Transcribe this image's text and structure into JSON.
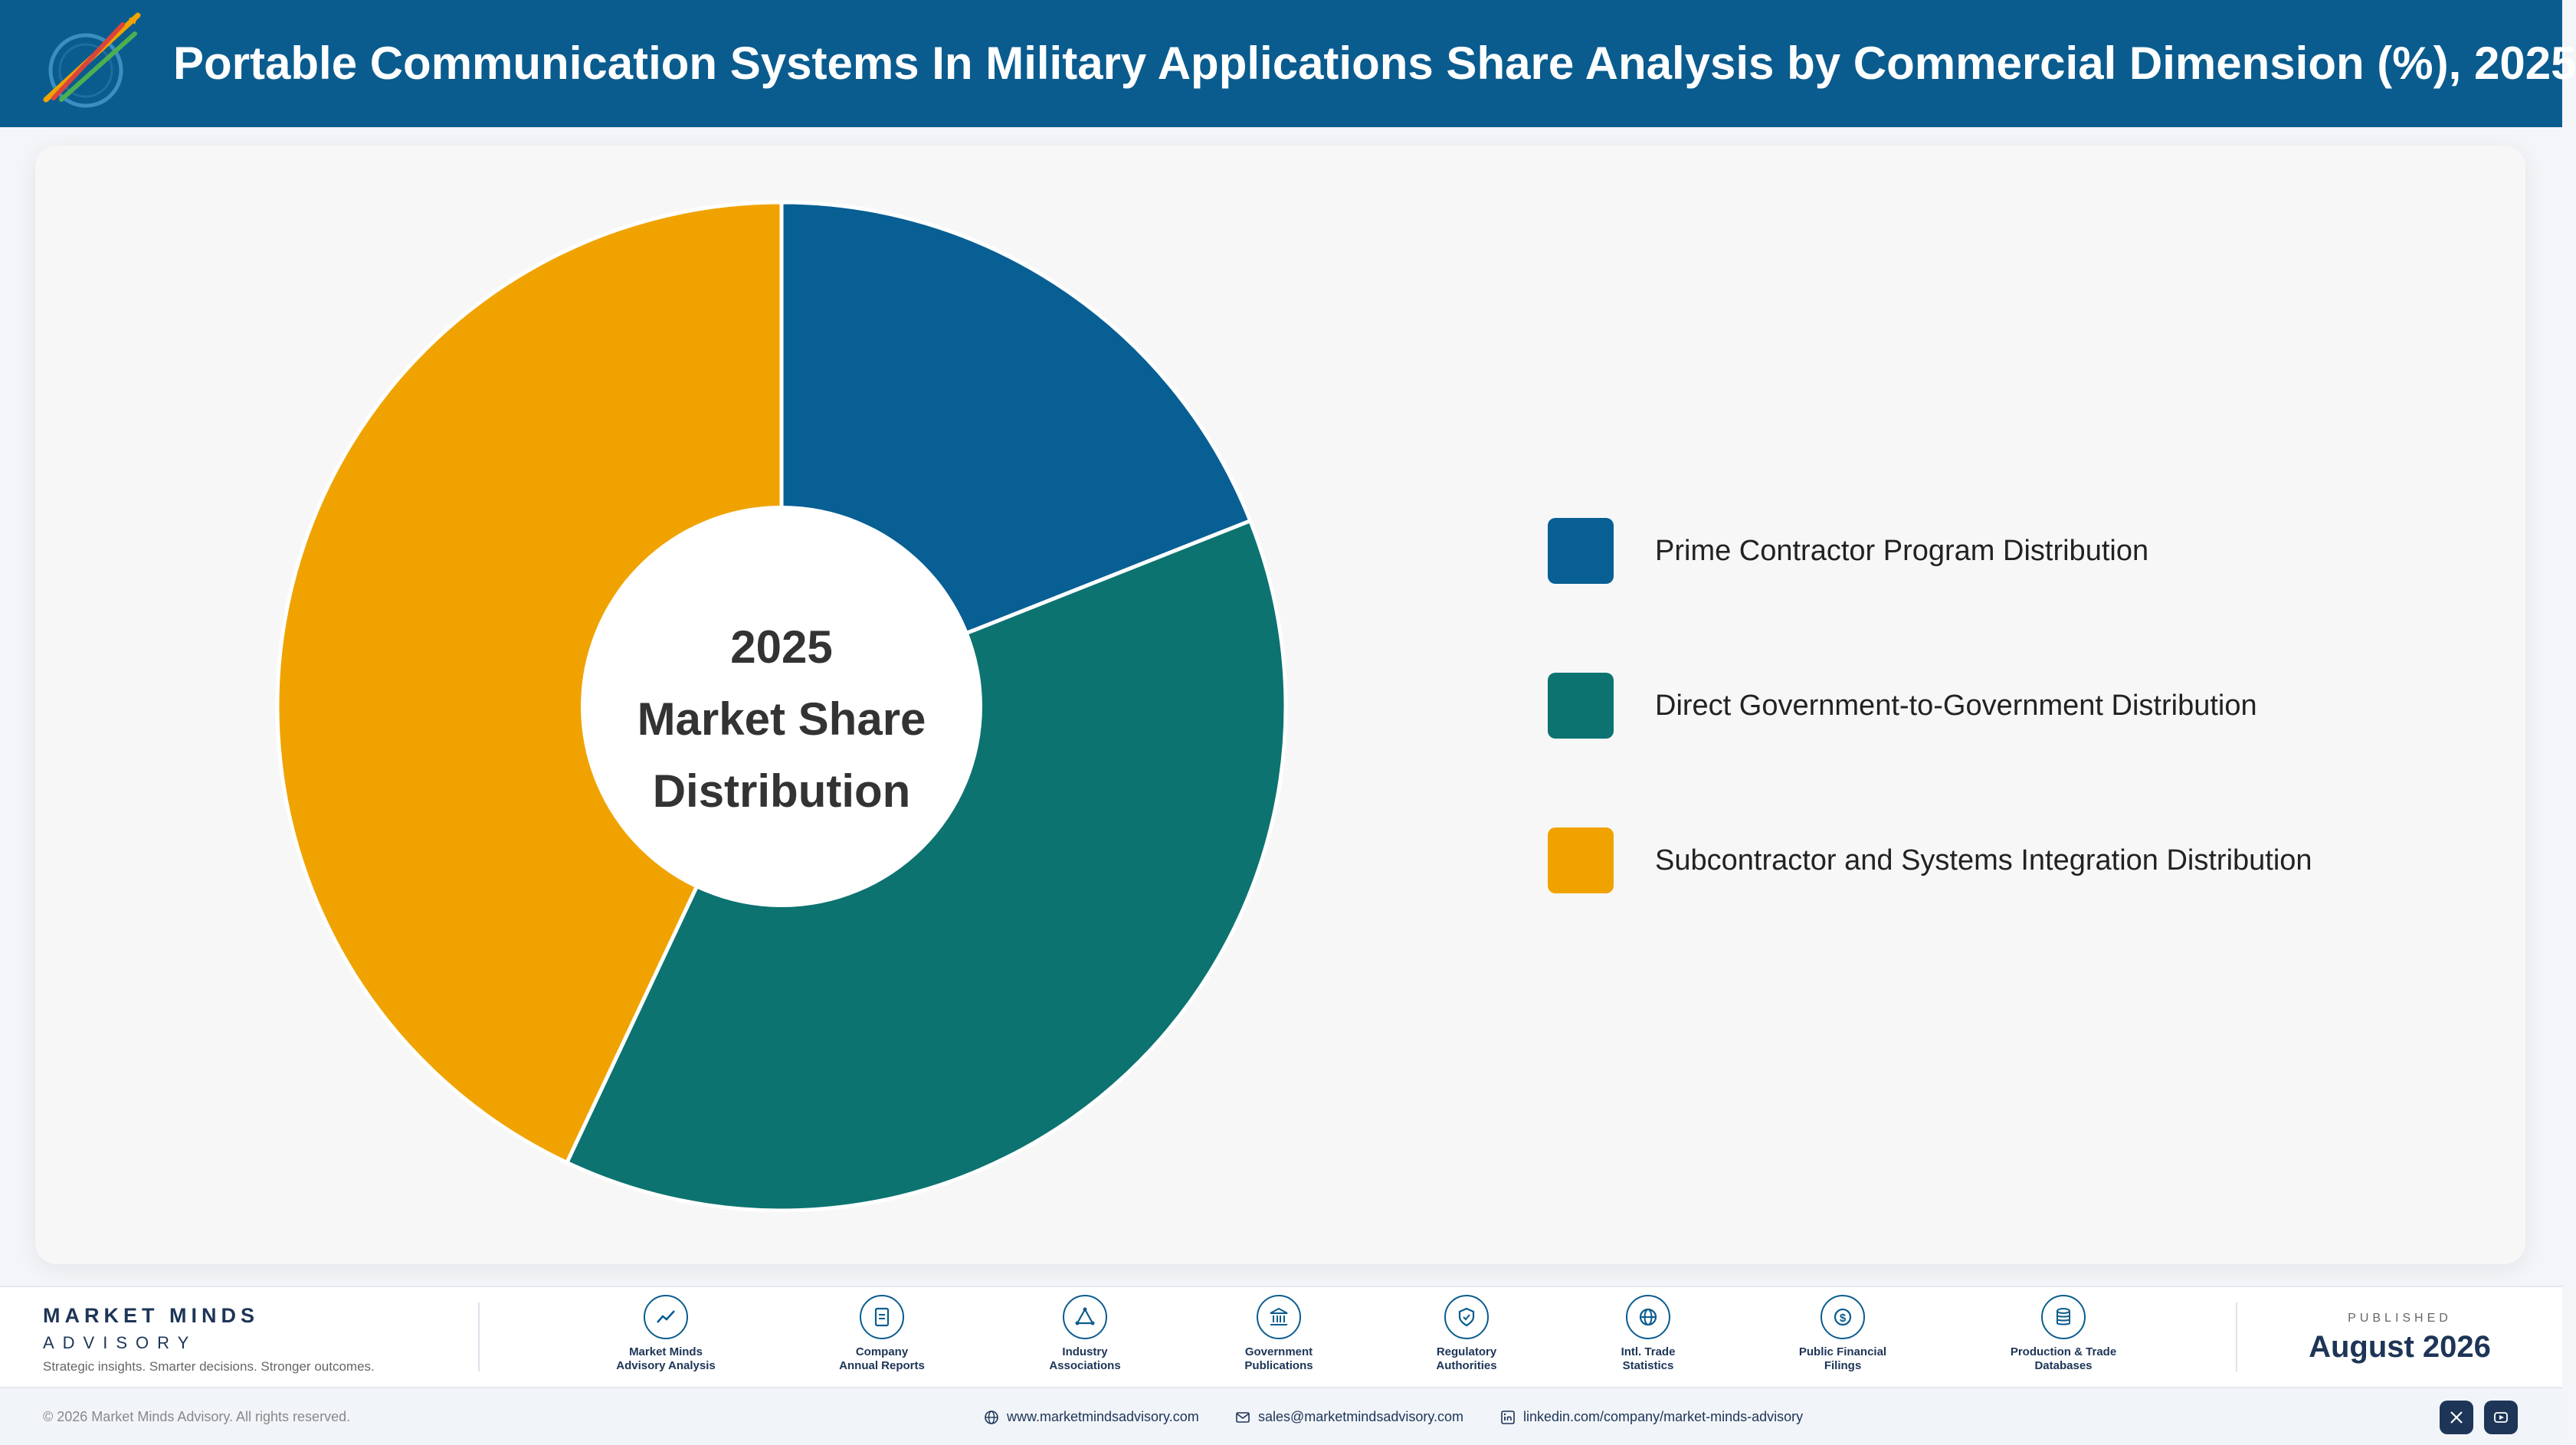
{
  "header": {
    "title": "Portable Communication Systems In Military Applications Share Analysis by Commercial Dimension (%), 2025"
  },
  "chart_data": {
    "type": "pie",
    "center_label": [
      "2025",
      "Market Share",
      "Distribution"
    ],
    "categories": [
      "Prime Contractor Program Distribution",
      "Direct Government-to-Government Distribution",
      "Subcontractor and Systems Integration Distribution"
    ],
    "values": [
      19,
      38,
      43
    ],
    "colors": [
      "#075f94",
      "#0c7370",
      "#f0a300"
    ],
    "legend_position": "right"
  },
  "footer": {
    "brand_name": "MARKET MINDS",
    "brand_sub": "ADVISORY",
    "tagline": "Strategic insights. Smarter decisions. Stronger outcomes.",
    "sources": [
      {
        "line1": "Market Minds",
        "line2": "Advisory Analysis",
        "icon": "trend-icon"
      },
      {
        "line1": "Company",
        "line2": "Annual Reports",
        "icon": "document-icon"
      },
      {
        "line1": "Industry",
        "line2": "Associations",
        "icon": "network-icon"
      },
      {
        "line1": "Government",
        "line2": "Publications",
        "icon": "building-icon"
      },
      {
        "line1": "Regulatory",
        "line2": "Authorities",
        "icon": "shield-icon"
      },
      {
        "line1": "Intl. Trade",
        "line2": "Statistics",
        "icon": "globe-icon"
      },
      {
        "line1": "Public Financial",
        "line2": "Filings",
        "icon": "dollar-icon"
      },
      {
        "line1": "Production & Trade",
        "line2": "Databases",
        "icon": "database-icon"
      }
    ],
    "published_label": "PUBLISHED",
    "published_date": "August 2026",
    "copyright": "© 2026 Market Minds Advisory. All rights reserved.",
    "website": "www.marketmindsadvisory.com",
    "email": "sales@marketmindsadvisory.com",
    "linkedin": "linkedin.com/company/market-minds-advisory"
  }
}
